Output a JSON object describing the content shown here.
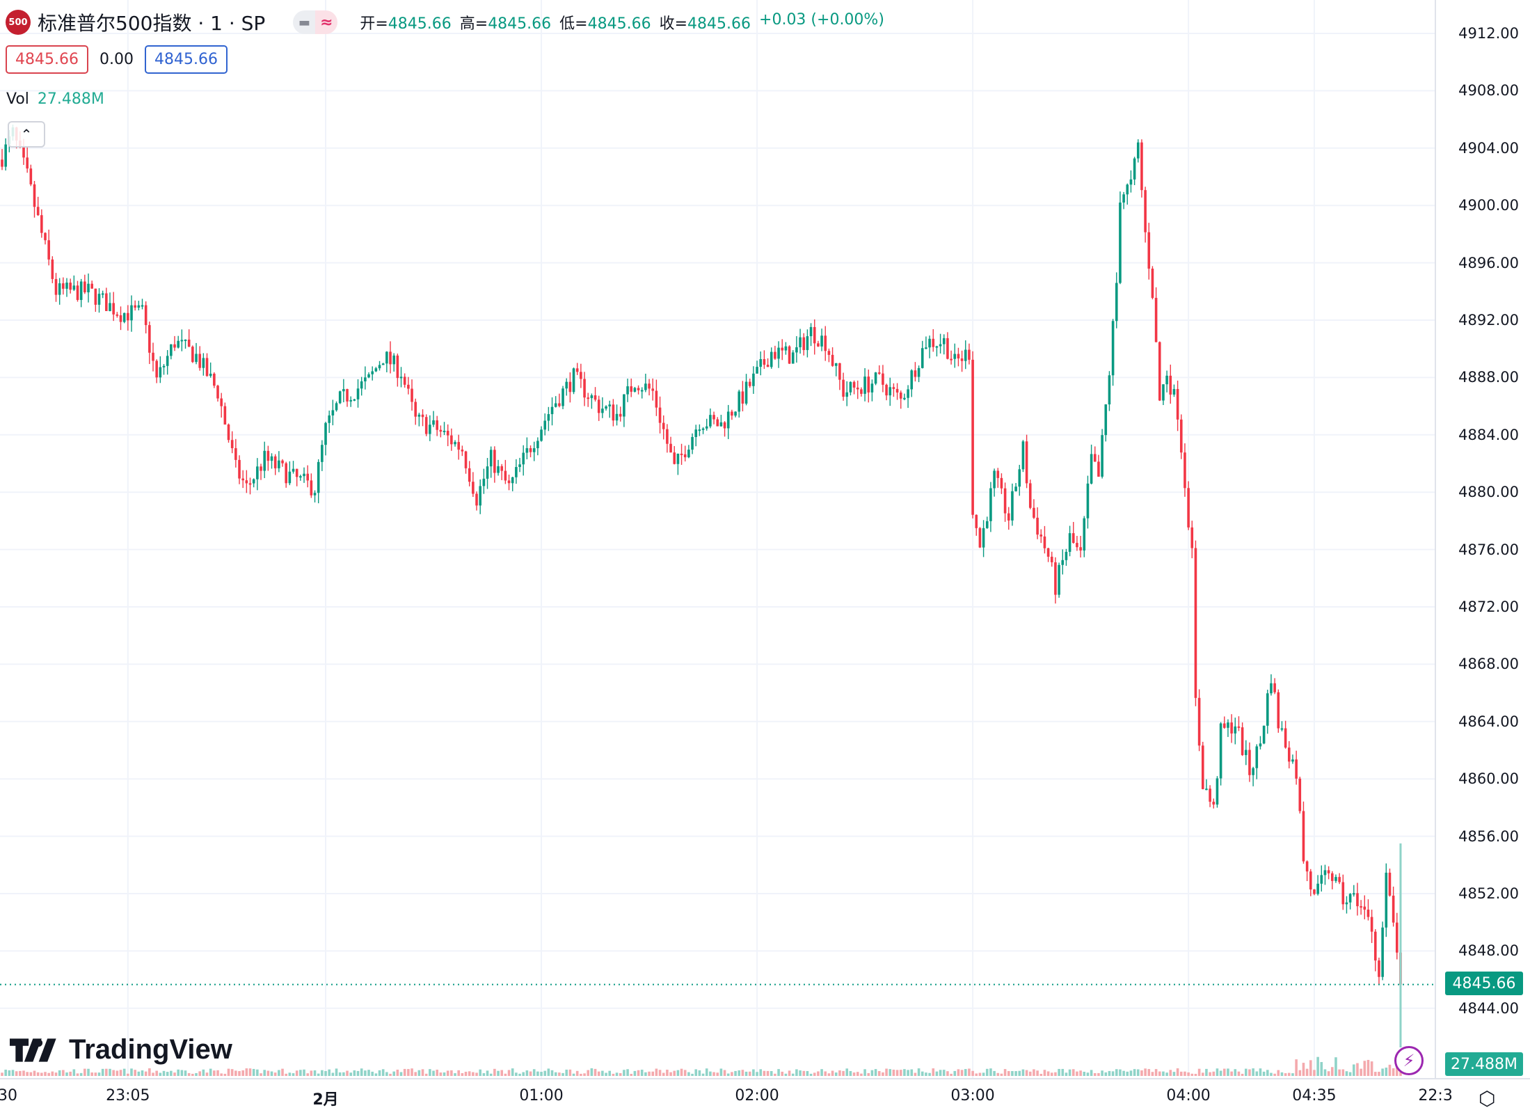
{
  "header": {
    "logo_text": "500",
    "title": "标准普尔500指数 · 1 · SP",
    "pill_icons": [
      "minus-icon",
      "wave-icon"
    ],
    "ohlc": [
      {
        "k": "开=",
        "v": "4845.66"
      },
      {
        "k": "高=",
        "v": "4845.66"
      },
      {
        "k": "低=",
        "v": "4845.66"
      },
      {
        "k": "收=",
        "v": "4845.66"
      }
    ],
    "change": "+0.03 (+0.00%)",
    "sell": "4845.66",
    "spread": "0.00",
    "buy": "4845.66",
    "vol_label": "Vol",
    "vol_value": "27.488M"
  },
  "brand": "TradingView",
  "last_price_tag": "4845.66",
  "volume_tag": "27.488M",
  "colors": {
    "up": "#089981",
    "down": "#f23645",
    "vol_up": "#8fd3c8",
    "vol_down": "#f4a9ad",
    "grid": "#f0f3fa",
    "tag": "#089981",
    "vol_tag": "#22ab94"
  },
  "chart_data": {
    "type": "candlestick",
    "interval": "1",
    "price_ticks": [
      "4912.00",
      "4908.00",
      "4904.00",
      "4900.00",
      "4896.00",
      "4892.00",
      "4888.00",
      "4884.00",
      "4880.00",
      "4876.00",
      "4872.00",
      "4868.00",
      "4864.00",
      "4860.00",
      "4856.00",
      "4852.00",
      "4848.00",
      "4844.00"
    ],
    "ylim": [
      4844,
      4912
    ],
    "time_ticks": [
      "30",
      "23:05",
      "2月",
      "01:00",
      "02:00",
      "03:00",
      "04:00",
      "04:35",
      "22:3"
    ],
    "grid": true,
    "last_price": 4845.66,
    "close_trace": [
      [
        "22:30",
        4903.4
      ],
      [
        "22:33",
        4905
      ],
      [
        "22:37",
        4902
      ],
      [
        "22:42",
        4897
      ],
      [
        "22:45",
        4894
      ],
      [
        "22:54",
        4894
      ],
      [
        "23:03",
        4892.5
      ],
      [
        "23:09",
        4892.5
      ],
      [
        "23:13",
        4887.8
      ],
      [
        "23:18",
        4890.5
      ],
      [
        "23:24",
        4889.5
      ],
      [
        "23:30",
        4887
      ],
      [
        "23:35",
        4881.6
      ],
      [
        "23:38",
        4880.3
      ],
      [
        "23:43",
        4882.3
      ],
      [
        "23:51",
        4881
      ],
      [
        "23:57",
        4880.3
      ],
      [
        "00:00",
        4884.4
      ],
      [
        "00:04",
        4886.4
      ],
      [
        "00:12",
        4887.8
      ],
      [
        "00:16",
        4889.5
      ],
      [
        "00:21",
        4888.4
      ],
      [
        "00:25",
        4885
      ],
      [
        "00:31",
        4884.4
      ],
      [
        "00:38",
        4883
      ],
      [
        "00:42",
        4879.6
      ],
      [
        "00:46",
        4882.3
      ],
      [
        "00:51",
        4880.3
      ],
      [
        "00:58",
        4883.7
      ],
      [
        "01:03",
        4886
      ],
      [
        "01:09",
        4888
      ],
      [
        "01:16",
        4886
      ],
      [
        "01:21",
        4885.4
      ],
      [
        "01:26",
        4887.8
      ],
      [
        "01:31",
        4887
      ],
      [
        "01:37",
        4881.6
      ],
      [
        "01:44",
        4885
      ],
      [
        "01:50",
        4884.7
      ],
      [
        "01:56",
        4886.7
      ],
      [
        "02:04",
        4889.8
      ],
      [
        "02:10",
        4889.5
      ],
      [
        "02:15",
        4891.2
      ],
      [
        "02:19",
        4890.5
      ],
      [
        "02:24",
        4887
      ],
      [
        "02:29",
        4887.4
      ],
      [
        "02:34",
        4887.8
      ],
      [
        "02:40",
        4886.4
      ],
      [
        "02:47",
        4890.5
      ],
      [
        "02:52",
        4890.5
      ],
      [
        "02:55",
        4889
      ],
      [
        "02:59",
        4889.8
      ],
      [
        "03:00",
        4878.9
      ],
      [
        "03:02",
        4876.2
      ],
      [
        "03:06",
        4881
      ],
      [
        "03:10",
        4878.2
      ],
      [
        "03:14",
        4883
      ],
      [
        "03:16",
        4878.9
      ],
      [
        "03:21",
        4875.5
      ],
      [
        "03:23",
        4873.4
      ],
      [
        "03:27",
        4876.8
      ],
      [
        "03:30",
        4875.5
      ],
      [
        "03:33",
        4882.3
      ],
      [
        "03:35",
        4881
      ],
      [
        "03:38",
        4888.4
      ],
      [
        "03:40",
        4894.6
      ],
      [
        "03:41",
        4900.7
      ],
      [
        "03:44",
        4901.4
      ],
      [
        "03:46",
        4904.1
      ],
      [
        "03:48",
        4898
      ],
      [
        "03:50",
        4894
      ],
      [
        "03:52",
        4886.4
      ],
      [
        "03:54",
        4888.4
      ],
      [
        "03:57",
        4885.7
      ],
      [
        "04:00",
        4878.2
      ],
      [
        "04:01",
        4875.5
      ],
      [
        "04:02",
        4865.3
      ],
      [
        "04:04",
        4859.8
      ],
      [
        "04:07",
        4857.8
      ],
      [
        "04:09",
        4863.2
      ],
      [
        "04:13",
        4863.9
      ],
      [
        "04:17",
        4860.5
      ],
      [
        "04:20",
        4862.5
      ],
      [
        "04:23",
        4867.3
      ],
      [
        "04:25",
        4863.9
      ],
      [
        "04:30",
        4860.5
      ],
      [
        "04:32",
        4854.4
      ],
      [
        "04:35",
        4851.6
      ],
      [
        "04:39",
        4853.7
      ],
      [
        "04:43",
        4851.6
      ],
      [
        "04:47",
        4851.6
      ],
      [
        "04:51",
        4849.6
      ],
      [
        "04:53",
        4846.2
      ],
      [
        "04:55",
        4853
      ],
      [
        "04:58",
        4848.2
      ],
      [
        "04:59",
        4845.66
      ]
    ]
  }
}
